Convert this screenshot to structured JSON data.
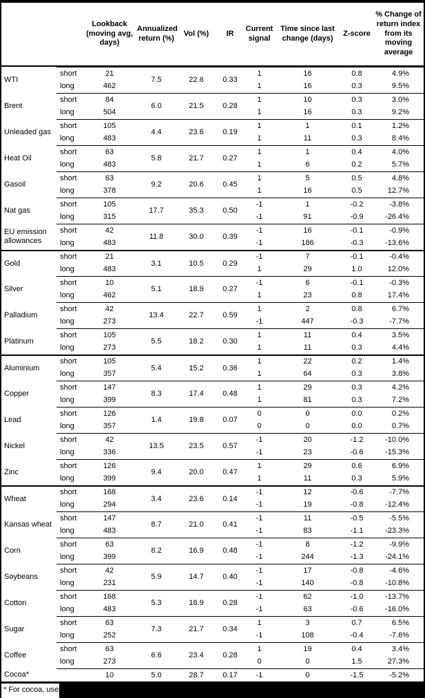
{
  "table": {
    "columns": [
      {
        "key": "commodity",
        "label": ""
      },
      {
        "key": "leg",
        "label": ""
      },
      {
        "key": "lookback",
        "label": "Lookback (moving avg, days)"
      },
      {
        "key": "annualized",
        "label": "Annualized return (%)"
      },
      {
        "key": "vol",
        "label": "Vol (%)"
      },
      {
        "key": "ir",
        "label": "IR"
      },
      {
        "key": "signal",
        "label": "Current signal"
      },
      {
        "key": "time",
        "label": "Time since last change (days)"
      },
      {
        "key": "zscore",
        "label": "Z-score"
      },
      {
        "key": "pct",
        "label": "% Change of return index from its moving average"
      }
    ],
    "groups": [
      {
        "name": "WTI",
        "section_start": false,
        "annualized": "7.5",
        "vol": "22.6",
        "ir": "0.33",
        "legs": [
          {
            "leg": "short",
            "lookback": "21",
            "signal": "1",
            "time": "16",
            "zscore": "0.8",
            "pct": "4.9%"
          },
          {
            "leg": "long",
            "lookback": "462",
            "signal": "1",
            "time": "16",
            "zscore": "0.3",
            "pct": "9.5%"
          }
        ]
      },
      {
        "name": "Brent",
        "section_start": false,
        "annualized": "6.0",
        "vol": "21.5",
        "ir": "0.28",
        "legs": [
          {
            "leg": "short",
            "lookback": "84",
            "signal": "1",
            "time": "10",
            "zscore": "0.3",
            "pct": "3.0%"
          },
          {
            "leg": "long",
            "lookback": "504",
            "signal": "1",
            "time": "16",
            "zscore": "0.3",
            "pct": "9.2%"
          }
        ]
      },
      {
        "name": "Unleaded gas",
        "section_start": false,
        "annualized": "4.4",
        "vol": "23.6",
        "ir": "0.19",
        "legs": [
          {
            "leg": "short",
            "lookback": "105",
            "signal": "1",
            "time": "1",
            "zscore": "0.1",
            "pct": "1.2%"
          },
          {
            "leg": "long",
            "lookback": "483",
            "signal": "1",
            "time": "11",
            "zscore": "0.3",
            "pct": "8.4%"
          }
        ]
      },
      {
        "name": "Heat Oil",
        "section_start": false,
        "annualized": "5.8",
        "vol": "21.7",
        "ir": "0.27",
        "legs": [
          {
            "leg": "short",
            "lookback": "63",
            "signal": "1",
            "time": "1",
            "zscore": "0.4",
            "pct": "4.0%"
          },
          {
            "leg": "long",
            "lookback": "483",
            "signal": "1",
            "time": "6",
            "zscore": "0.2",
            "pct": "5.7%"
          }
        ]
      },
      {
        "name": "Gasoil",
        "section_start": false,
        "annualized": "9.2",
        "vol": "20.6",
        "ir": "0.45",
        "legs": [
          {
            "leg": "short",
            "lookback": "63",
            "signal": "1",
            "time": "5",
            "zscore": "0.5",
            "pct": "4.8%"
          },
          {
            "leg": "long",
            "lookback": "378",
            "signal": "1",
            "time": "16",
            "zscore": "0.5",
            "pct": "12.7%"
          }
        ]
      },
      {
        "name": "Nat gas",
        "section_start": false,
        "annualized": "17.7",
        "vol": "35.3",
        "ir": "0.50",
        "legs": [
          {
            "leg": "short",
            "lookback": "105",
            "signal": "-1",
            "time": "1",
            "zscore": "-0.2",
            "pct": "-3.8%"
          },
          {
            "leg": "long",
            "lookback": "315",
            "signal": "-1",
            "time": "91",
            "zscore": "-0.9",
            "pct": "-26.4%"
          }
        ]
      },
      {
        "name": "EU emission allowances",
        "section_start": false,
        "annualized": "11.8",
        "vol": "30.0",
        "ir": "0.39",
        "legs": [
          {
            "leg": "short",
            "lookback": "42",
            "signal": "-1",
            "time": "16",
            "zscore": "-0.1",
            "pct": "-0.9%"
          },
          {
            "leg": "long",
            "lookback": "483",
            "signal": "-1",
            "time": "186",
            "zscore": "-0.3",
            "pct": "-13.6%"
          }
        ]
      },
      {
        "name": "Gold",
        "section_start": true,
        "annualized": "3.1",
        "vol": "10.5",
        "ir": "0.29",
        "legs": [
          {
            "leg": "short",
            "lookback": "21",
            "signal": "-1",
            "time": "7",
            "zscore": "-0.1",
            "pct": "-0.4%"
          },
          {
            "leg": "long",
            "lookback": "483",
            "signal": "1",
            "time": "29",
            "zscore": "1.0",
            "pct": "12.0%"
          }
        ]
      },
      {
        "name": "Silver",
        "section_start": false,
        "annualized": "5.1",
        "vol": "18.9",
        "ir": "0.27",
        "legs": [
          {
            "leg": "short",
            "lookback": "10",
            "signal": "-1",
            "time": "6",
            "zscore": "-0.1",
            "pct": "-0.3%"
          },
          {
            "leg": "long",
            "lookback": "462",
            "signal": "1",
            "time": "23",
            "zscore": "0.8",
            "pct": "17.4%"
          }
        ]
      },
      {
        "name": "Palladium",
        "section_start": false,
        "annualized": "13.4",
        "vol": "22.7",
        "ir": "0.59",
        "legs": [
          {
            "leg": "short",
            "lookback": "42",
            "signal": "1",
            "time": "2",
            "zscore": "0.8",
            "pct": "6.7%"
          },
          {
            "leg": "long",
            "lookback": "273",
            "signal": "-1",
            "time": "447",
            "zscore": "-0.3",
            "pct": "-7.7%"
          }
        ]
      },
      {
        "name": "Platinum",
        "section_start": false,
        "annualized": "5.5",
        "vol": "18.2",
        "ir": "0.30",
        "legs": [
          {
            "leg": "short",
            "lookback": "105",
            "signal": "1",
            "time": "11",
            "zscore": "0.4",
            "pct": "3.5%"
          },
          {
            "leg": "long",
            "lookback": "273",
            "signal": "1",
            "time": "11",
            "zscore": "0.3",
            "pct": "4.4%"
          }
        ]
      },
      {
        "name": "Aluminium",
        "section_start": true,
        "annualized": "5.4",
        "vol": "15.2",
        "ir": "0.36",
        "legs": [
          {
            "leg": "short",
            "lookback": "105",
            "signal": "1",
            "time": "22",
            "zscore": "0.2",
            "pct": "1.4%"
          },
          {
            "leg": "long",
            "lookback": "357",
            "signal": "1",
            "time": "64",
            "zscore": "0.3",
            "pct": "3.8%"
          }
        ]
      },
      {
        "name": "Copper",
        "section_start": false,
        "annualized": "8.3",
        "vol": "17.4",
        "ir": "0.48",
        "legs": [
          {
            "leg": "short",
            "lookback": "147",
            "signal": "1",
            "time": "29",
            "zscore": "0.3",
            "pct": "4.2%"
          },
          {
            "leg": "long",
            "lookback": "399",
            "signal": "1",
            "time": "81",
            "zscore": "0.3",
            "pct": "7.2%"
          }
        ]
      },
      {
        "name": "Lead",
        "section_start": false,
        "annualized": "1.4",
        "vol": "19.8",
        "ir": "0.07",
        "legs": [
          {
            "leg": "short",
            "lookback": "126",
            "signal": "0",
            "time": "0",
            "zscore": "0.0",
            "pct": "0.2%"
          },
          {
            "leg": "long",
            "lookback": "357",
            "signal": "0",
            "time": "0",
            "zscore": "0.0",
            "pct": "0.7%"
          }
        ]
      },
      {
        "name": "Nickel",
        "section_start": false,
        "annualized": "13.5",
        "vol": "23.5",
        "ir": "0.57",
        "legs": [
          {
            "leg": "short",
            "lookback": "42",
            "signal": "-1",
            "time": "20",
            "zscore": "-1.2",
            "pct": "-10.0%"
          },
          {
            "leg": "long",
            "lookback": "336",
            "signal": "-1",
            "time": "23",
            "zscore": "-0.6",
            "pct": "-15.3%"
          }
        ]
      },
      {
        "name": "Zinc",
        "section_start": false,
        "annualized": "9.4",
        "vol": "20.0",
        "ir": "0.47",
        "legs": [
          {
            "leg": "short",
            "lookback": "126",
            "signal": "1",
            "time": "29",
            "zscore": "0.6",
            "pct": "6.9%"
          },
          {
            "leg": "long",
            "lookback": "399",
            "signal": "1",
            "time": "11",
            "zscore": "0.3",
            "pct": "5.9%"
          }
        ]
      },
      {
        "name": "Wheat",
        "section_start": true,
        "annualized": "3.4",
        "vol": "23.6",
        "ir": "0.14",
        "legs": [
          {
            "leg": "short",
            "lookback": "168",
            "signal": "-1",
            "time": "12",
            "zscore": "-0.6",
            "pct": "-7.7%"
          },
          {
            "leg": "long",
            "lookback": "294",
            "signal": "-1",
            "time": "19",
            "zscore": "-0.8",
            "pct": "-12.4%"
          }
        ]
      },
      {
        "name": "Kansas wheat",
        "section_start": false,
        "annualized": "8.7",
        "vol": "21.0",
        "ir": "0.41",
        "legs": [
          {
            "leg": "short",
            "lookback": "147",
            "signal": "-1",
            "time": "11",
            "zscore": "-0.5",
            "pct": "-5.5%"
          },
          {
            "leg": "long",
            "lookback": "483",
            "signal": "-1",
            "time": "83",
            "zscore": "-1.1",
            "pct": "-23.3%"
          }
        ]
      },
      {
        "name": "Corn",
        "section_start": false,
        "annualized": "8.2",
        "vol": "16.9",
        "ir": "0.48",
        "legs": [
          {
            "leg": "short",
            "lookback": "63",
            "signal": "-1",
            "time": "8",
            "zscore": "-1.2",
            "pct": "-9.9%"
          },
          {
            "leg": "long",
            "lookback": "399",
            "signal": "-1",
            "time": "244",
            "zscore": "-1.3",
            "pct": "-24.1%"
          }
        ]
      },
      {
        "name": "Soybeans",
        "section_start": false,
        "annualized": "5.9",
        "vol": "14.7",
        "ir": "0.40",
        "legs": [
          {
            "leg": "short",
            "lookback": "42",
            "signal": "-1",
            "time": "17",
            "zscore": "-0.8",
            "pct": "-4.6%"
          },
          {
            "leg": "long",
            "lookback": "231",
            "signal": "-1",
            "time": "140",
            "zscore": "-0.8",
            "pct": "-10.8%"
          }
        ]
      },
      {
        "name": "Cotton",
        "section_start": false,
        "annualized": "5.3",
        "vol": "18.9",
        "ir": "0.28",
        "legs": [
          {
            "leg": "short",
            "lookback": "168",
            "signal": "-1",
            "time": "62",
            "zscore": "-1.0",
            "pct": "-13.7%"
          },
          {
            "leg": "long",
            "lookback": "483",
            "signal": "-1",
            "time": "63",
            "zscore": "-0.6",
            "pct": "-16.0%"
          }
        ]
      },
      {
        "name": "Sugar",
        "section_start": false,
        "annualized": "7.3",
        "vol": "21.7",
        "ir": "0.34",
        "legs": [
          {
            "leg": "short",
            "lookback": "63",
            "signal": "1",
            "time": "3",
            "zscore": "0.7",
            "pct": "6.5%"
          },
          {
            "leg": "long",
            "lookback": "252",
            "signal": "-1",
            "time": "108",
            "zscore": "-0.4",
            "pct": "-7.6%"
          }
        ]
      },
      {
        "name": "Coffee",
        "section_start": false,
        "annualized": "6.6",
        "vol": "23.4",
        "ir": "0.28",
        "legs": [
          {
            "leg": "short",
            "lookback": "63",
            "signal": "1",
            "time": "19",
            "zscore": "0.4",
            "pct": "3.4%"
          },
          {
            "leg": "long",
            "lookback": "273",
            "signal": "0",
            "time": "0",
            "zscore": "1.5",
            "pct": "27.3%"
          }
        ]
      },
      {
        "name": "Cocoa*",
        "section_start": false,
        "annualized": "5.0",
        "vol": "28.7",
        "ir": "0.17",
        "legs": [
          {
            "leg": "",
            "lookback": "10",
            "signal": "-1",
            "time": "0",
            "zscore": "-1.5",
            "pct": "-5.2%"
          }
        ]
      }
    ]
  },
  "footnote": {
    "text": "* For cocoa, uses o"
  }
}
